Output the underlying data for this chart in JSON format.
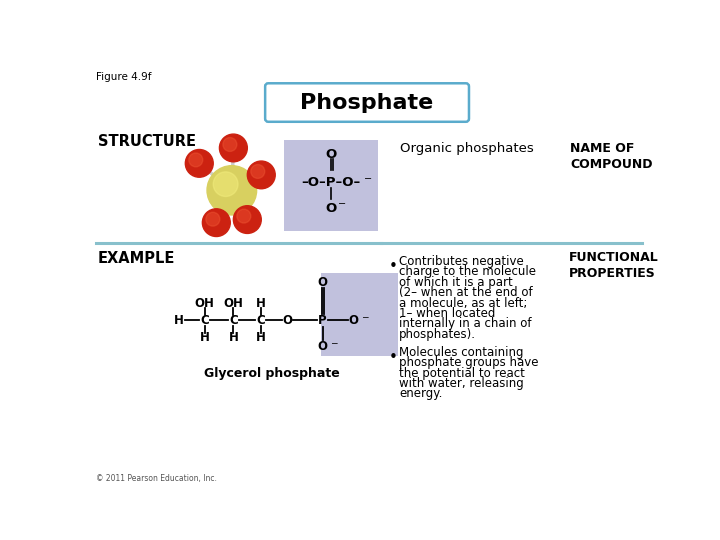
{
  "title": "Phosphate",
  "figure_label": "Figure 4.9f",
  "copyright": "© 2011 Pearson Education, Inc.",
  "structure_label": "STRUCTURE",
  "example_label": "EXAMPLE",
  "organic_phosphates_label": "Organic phosphates",
  "name_of_compound_label": "NAME OF\nCOMPOUND",
  "functional_properties_label": "FUNCTIONAL\nPROPERTIES",
  "glycerol_phosphate_label": "Glycerol phosphate",
  "bullet1_line1": "Contributes negative",
  "bullet1_line2": "charge to the molecule",
  "bullet1_line3": "of which it is a part",
  "bullet1_line4": "(2– when at the end of",
  "bullet1_line5": "a molecule, as at left;",
  "bullet1_line6": "1– when located",
  "bullet1_line7": "internally in a chain of",
  "bullet1_line8": "phosphates).",
  "bullet2_line1": "Molecules containing",
  "bullet2_line2": "phosphate groups have",
  "bullet2_line3": "the potential to react",
  "bullet2_line4": "with water, releasing",
  "bullet2_line5": "energy.",
  "box_color": "#a0a0cc",
  "title_box_edge_color": "#5aabcc",
  "background_color": "#ffffff",
  "divider_color": "#88c0cc",
  "title_fontsize": 16,
  "label_fontsize": 9,
  "body_fontsize": 8,
  "header_fontsize": 9
}
